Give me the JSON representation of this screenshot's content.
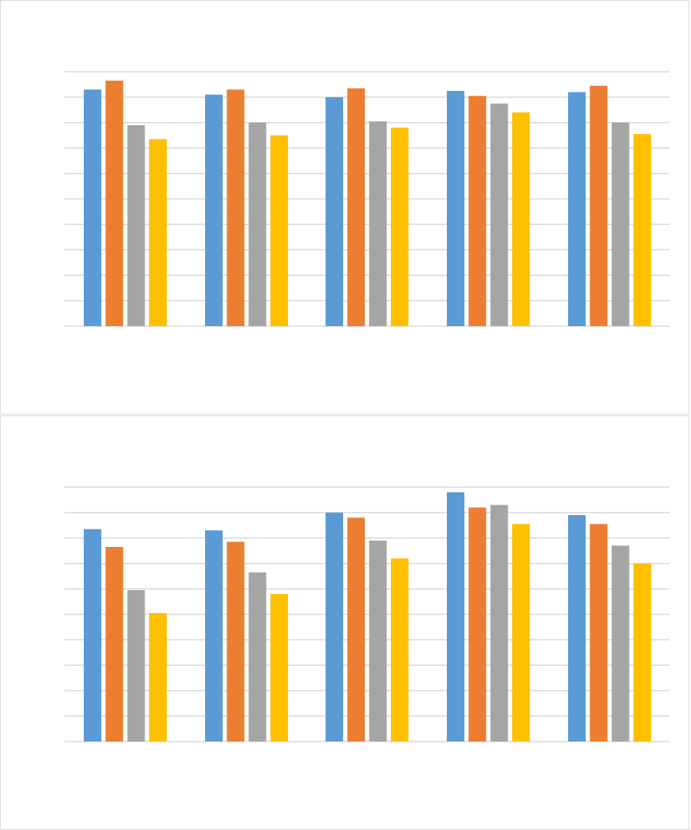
{
  "chart_data": [
    {
      "type": "bar",
      "title": "",
      "xlabel": "",
      "ylabel": "",
      "ylim": [
        0,
        10
      ],
      "grid": true,
      "legend": "none",
      "categories": [
        "",
        "",
        "",
        "",
        ""
      ],
      "series": [
        {
          "color": "#5b9bd5",
          "values": [
            9.3,
            9.1,
            9.0,
            9.25,
            9.2
          ]
        },
        {
          "color": "#ed7d31",
          "values": [
            9.65,
            9.3,
            9.35,
            9.05,
            9.45
          ]
        },
        {
          "color": "#a5a5a5",
          "values": [
            7.9,
            8.0,
            8.05,
            8.75,
            8.0
          ]
        },
        {
          "color": "#ffc000",
          "values": [
            7.35,
            7.5,
            7.8,
            8.4,
            7.55
          ]
        }
      ]
    },
    {
      "type": "bar",
      "title": "",
      "xlabel": "",
      "ylabel": "",
      "ylim": [
        0,
        10
      ],
      "grid": true,
      "legend": "none",
      "categories": [
        "",
        "",
        "",
        "",
        ""
      ],
      "series": [
        {
          "color": "#5b9bd5",
          "values": [
            8.35,
            8.3,
            9.0,
            9.8,
            8.9
          ]
        },
        {
          "color": "#ed7d31",
          "values": [
            7.65,
            7.85,
            8.8,
            9.2,
            8.55
          ]
        },
        {
          "color": "#a5a5a5",
          "values": [
            5.95,
            6.65,
            7.9,
            9.3,
            7.7
          ]
        },
        {
          "color": "#ffc000",
          "values": [
            5.05,
            5.8,
            7.2,
            8.55,
            7.0
          ]
        }
      ]
    }
  ]
}
